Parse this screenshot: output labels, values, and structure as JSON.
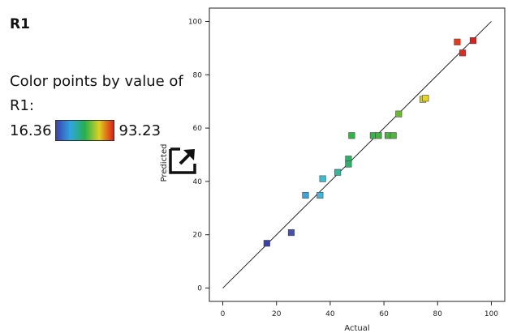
{
  "panel": {
    "title": "R1",
    "legend_text": "Color points by value of R1:",
    "legend_min": "16.36",
    "legend_max": "93.23",
    "gradient_colors": [
      "#3b3fb0",
      "#2fa6df",
      "#28b04b",
      "#e0d020",
      "#e21b1b"
    ]
  },
  "icons": {
    "expand": "expand-icon"
  },
  "chart_data": {
    "type": "scatter",
    "xlabel": "Actual",
    "ylabel": "Predicted",
    "xlim": [
      -5,
      105
    ],
    "ylim": [
      -5,
      105
    ],
    "x_ticks": [
      0,
      20,
      40,
      60,
      80,
      100
    ],
    "y_ticks": [
      0,
      20,
      40,
      60,
      80,
      100
    ],
    "reference_line": [
      [
        0,
        0
      ],
      [
        100,
        100
      ]
    ],
    "grid": false,
    "color_by": "R1",
    "color_range": [
      16.36,
      93.23
    ],
    "points": [
      {
        "x": 16.4,
        "y": 16.8,
        "color": "#3b3fb0"
      },
      {
        "x": 25.5,
        "y": 20.8,
        "color": "#4450b8"
      },
      {
        "x": 30.8,
        "y": 34.8,
        "color": "#34a6e0"
      },
      {
        "x": 36.2,
        "y": 34.8,
        "color": "#3fb3e4"
      },
      {
        "x": 37.2,
        "y": 41.0,
        "color": "#3fbad0"
      },
      {
        "x": 42.8,
        "y": 43.4,
        "color": "#2fb89a"
      },
      {
        "x": 46.8,
        "y": 48.4,
        "color": "#2fb06a"
      },
      {
        "x": 46.8,
        "y": 46.5,
        "color": "#2fb06a"
      },
      {
        "x": 48.0,
        "y": 57.2,
        "color": "#33b545"
      },
      {
        "x": 56.0,
        "y": 57.2,
        "color": "#3bb541"
      },
      {
        "x": 58.0,
        "y": 57.2,
        "color": "#3eb543"
      },
      {
        "x": 61.5,
        "y": 57.2,
        "color": "#49b53f"
      },
      {
        "x": 63.5,
        "y": 57.2,
        "color": "#4fb53c"
      },
      {
        "x": 65.5,
        "y": 65.3,
        "color": "#6ab92f"
      },
      {
        "x": 74.5,
        "y": 70.8,
        "color": "#d8d21f"
      },
      {
        "x": 75.5,
        "y": 71.2,
        "color": "#e6d61c"
      },
      {
        "x": 87.3,
        "y": 92.3,
        "color": "#e53a1f"
      },
      {
        "x": 89.3,
        "y": 88.2,
        "color": "#e32a1c"
      },
      {
        "x": 93.2,
        "y": 92.8,
        "color": "#e21b1b"
      }
    ]
  }
}
